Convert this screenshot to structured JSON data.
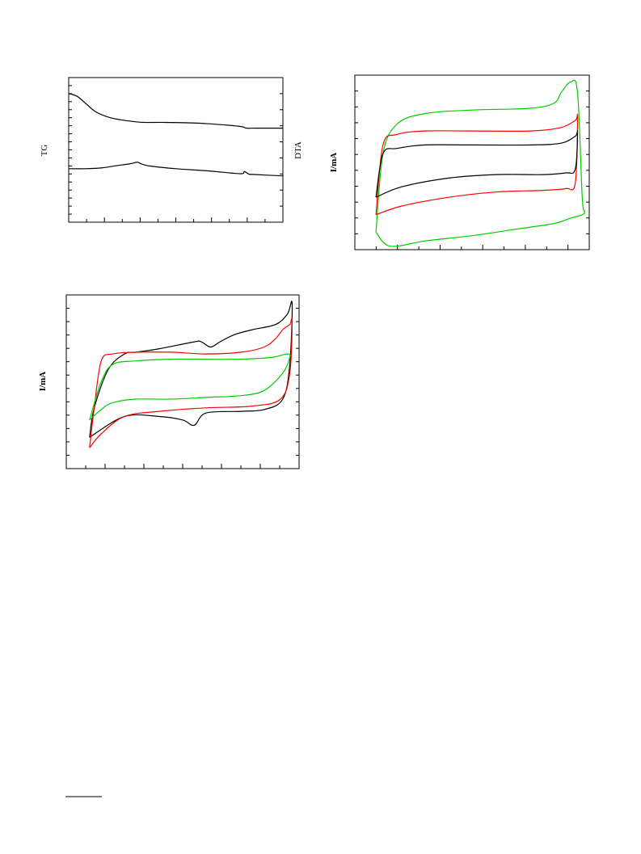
{
  "chart_data": [
    {
      "id": "tg-dta",
      "type": "line",
      "title": "",
      "ylabel_left": "TG",
      "ylabel_right": "DTA",
      "xlim": [
        0,
        100
      ],
      "ylim": [
        0,
        100
      ],
      "x_minor_ticks": 12,
      "y_left_ticks": 18,
      "y_right_ticks": 9,
      "series": [
        {
          "color": "#000000",
          "x": [
            0,
            4,
            8,
            13,
            20,
            28,
            35,
            45,
            60,
            75,
            81,
            83,
            88,
            100
          ],
          "y": [
            89,
            87,
            82,
            76,
            72,
            70,
            69,
            69,
            68.5,
            67,
            66,
            65,
            65,
            65
          ]
        },
        {
          "color": "#000000",
          "x": [
            0,
            8,
            15,
            22,
            29,
            32,
            34,
            38,
            50,
            65,
            80,
            82,
            84,
            86,
            100
          ],
          "y": [
            37,
            37,
            37.5,
            39,
            40.5,
            41.5,
            40.3,
            38.8,
            37,
            35.5,
            33.5,
            35,
            33.3,
            33,
            32
          ]
        }
      ]
    },
    {
      "id": "cv-top-right",
      "type": "line",
      "title": "",
      "ylabel": "I/mA",
      "xlim": [
        0,
        100
      ],
      "ylim": [
        0,
        100
      ],
      "x_minor_ticks": 11,
      "y_ticks": 11,
      "series": [
        {
          "color": "#00cc00",
          "x": [
            9,
            12,
            18,
            30,
            50,
            75,
            85,
            88,
            92,
            95,
            97,
            98,
            97,
            92,
            85,
            70,
            50,
            30,
            15,
            9
          ],
          "y": [
            10,
            55,
            72,
            78,
            80,
            81,
            84,
            90,
            96,
            90,
            30,
            22,
            20,
            18,
            15,
            12,
            8,
            5,
            2,
            10
          ]
        },
        {
          "color": "#ff0000",
          "x": [
            9,
            12,
            18,
            30,
            50,
            75,
            88,
            94,
            95,
            94,
            90,
            80,
            60,
            40,
            20,
            9
          ],
          "y": [
            20,
            60,
            66,
            68,
            68,
            68,
            70,
            74,
            75,
            38,
            35,
            34,
            33,
            30,
            25,
            20
          ]
        },
        {
          "color": "#000000",
          "x": [
            9,
            12,
            18,
            30,
            50,
            75,
            88,
            94,
            95,
            94,
            90,
            80,
            60,
            40,
            20,
            9
          ],
          "y": [
            30,
            55,
            58,
            60,
            60,
            60,
            61,
            65,
            67,
            46,
            44,
            43,
            43,
            41,
            36,
            30
          ]
        }
      ]
    },
    {
      "id": "cv-bottom-left",
      "type": "line",
      "title": "",
      "ylabel": "I/mA",
      "xlim": [
        0,
        100
      ],
      "ylim": [
        0,
        100
      ],
      "x_minor_ticks": 12,
      "y_ticks": 13,
      "series": [
        {
          "color": "#000000",
          "x": [
            10,
            12,
            18,
            25,
            30,
            40,
            55,
            58,
            62,
            66,
            72,
            80,
            90,
            95,
            97,
            96,
            93,
            85,
            75,
            60,
            55,
            50,
            40,
            25,
            10
          ],
          "y": [
            18,
            35,
            57,
            66,
            67,
            69,
            73,
            73,
            70,
            73,
            77,
            80,
            83,
            89,
            95,
            60,
            40,
            34,
            33,
            32,
            25,
            28,
            30,
            30,
            18
          ]
        },
        {
          "color": "#ff0000",
          "x": [
            10,
            12,
            15,
            20,
            30,
            45,
            60,
            75,
            85,
            90,
            93,
            96,
            97,
            96,
            92,
            80,
            60,
            40,
            25,
            15,
            10
          ],
          "y": [
            12,
            35,
            62,
            66,
            67,
            67,
            66,
            67,
            70,
            75,
            80,
            83,
            85,
            55,
            40,
            36,
            35,
            33,
            30,
            20,
            12
          ]
        },
        {
          "color": "#00cc00",
          "x": [
            10,
            15,
            20,
            30,
            45,
            60,
            75,
            88,
            95,
            96,
            93,
            85,
            75,
            60,
            45,
            30,
            20,
            15,
            10
          ],
          "y": [
            28,
            50,
            60,
            62,
            63,
            63,
            63,
            64,
            66,
            64,
            55,
            45,
            42,
            41,
            40,
            40,
            38,
            34,
            28
          ]
        }
      ]
    }
  ],
  "footnote_rule": true
}
